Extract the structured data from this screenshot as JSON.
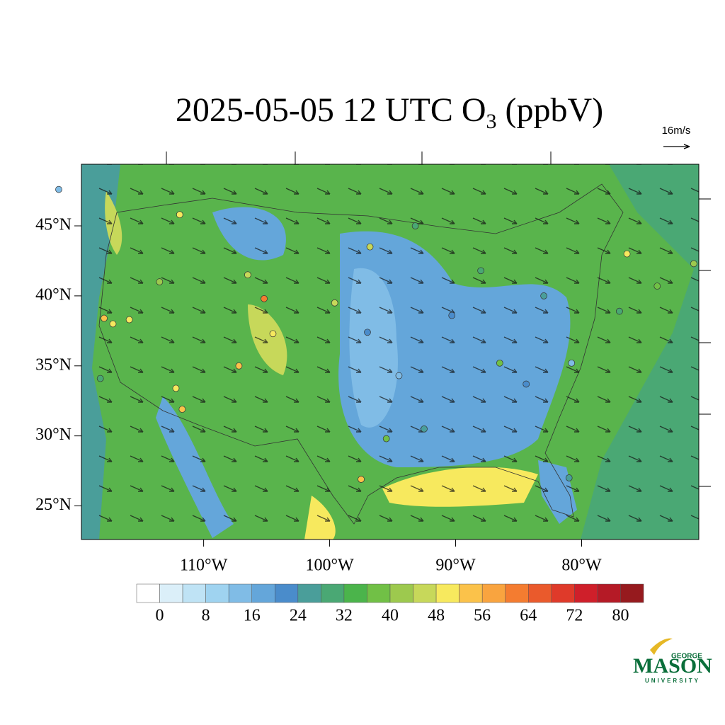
{
  "chart_data": {
    "type": "map",
    "title": "2025-05-05 12 UTC O",
    "title_subscript": "3",
    "title_tail": " (ppbV)",
    "reference_vector": "16m/s",
    "xlim": [
      -119.7,
      -70.7
    ],
    "ylim": [
      22.6,
      49.4
    ],
    "xticks": [
      {
        "value": -110,
        "label": "110°W"
      },
      {
        "value": -100,
        "label": "100°W"
      },
      {
        "value": -90,
        "label": "90°W"
      },
      {
        "value": -80,
        "label": "80°W"
      }
    ],
    "yticks": [
      {
        "value": 25,
        "label": "25°N"
      },
      {
        "value": 30,
        "label": "30°N"
      },
      {
        "value": 35,
        "label": "35°N"
      },
      {
        "value": 40,
        "label": "40°N"
      },
      {
        "value": 45,
        "label": "45°N"
      }
    ],
    "colorbar": {
      "range": [
        -4,
        84
      ],
      "colors": [
        "#ffffff",
        "#dbeff9",
        "#bfe3f5",
        "#9fd3f0",
        "#80bce6",
        "#64a6da",
        "#4a8ccb",
        "#4a9e9a",
        "#4aa874",
        "#4bb44b",
        "#71c046",
        "#9dc94e",
        "#c7d85a",
        "#f7e95e",
        "#fbc24a",
        "#f9a43f",
        "#f47c30",
        "#ea5a2c",
        "#df3a2a",
        "#cf1f2a",
        "#b51a26",
        "#961a1e"
      ],
      "ticks": [
        0,
        8,
        16,
        24,
        32,
        40,
        48,
        56,
        64,
        72,
        80
      ]
    },
    "stations": [
      {
        "lon": -117.9,
        "lat": 38.4,
        "value": 52
      },
      {
        "lon": -117.2,
        "lat": 38.0,
        "value": 50
      },
      {
        "lon": -115.9,
        "lat": 38.3,
        "value": 49
      },
      {
        "lon": -118.2,
        "lat": 34.1,
        "value": 28
      },
      {
        "lon": -112.2,
        "lat": 33.4,
        "value": 50
      },
      {
        "lon": -111.7,
        "lat": 31.9,
        "value": 52
      },
      {
        "lon": -105.2,
        "lat": 39.8,
        "value": 62
      },
      {
        "lon": -104.5,
        "lat": 37.3,
        "value": 50
      },
      {
        "lon": -107.2,
        "lat": 35.0,
        "value": 52
      },
      {
        "lon": -106.5,
        "lat": 41.5,
        "value": 46
      },
      {
        "lon": -111.9,
        "lat": 45.8,
        "value": 48
      },
      {
        "lon": -99.6,
        "lat": 39.5,
        "value": 46
      },
      {
        "lon": -97.0,
        "lat": 37.4,
        "value": 20
      },
      {
        "lon": -94.5,
        "lat": 34.3,
        "value": 14
      },
      {
        "lon": -95.5,
        "lat": 29.8,
        "value": 38
      },
      {
        "lon": -92.5,
        "lat": 30.5,
        "value": 24
      },
      {
        "lon": -90.3,
        "lat": 38.6,
        "value": 20
      },
      {
        "lon": -88.0,
        "lat": 41.8,
        "value": 30
      },
      {
        "lon": -86.5,
        "lat": 35.2,
        "value": 36
      },
      {
        "lon": -84.4,
        "lat": 33.7,
        "value": 22
      },
      {
        "lon": -81.0,
        "lat": 27.0,
        "value": 24
      },
      {
        "lon": -80.8,
        "lat": 35.2,
        "value": 14
      },
      {
        "lon": -77.0,
        "lat": 38.9,
        "value": 30
      },
      {
        "lon": -74.0,
        "lat": 40.7,
        "value": 36
      },
      {
        "lon": -76.4,
        "lat": 43.0,
        "value": 48
      },
      {
        "lon": -71.1,
        "lat": 42.3,
        "value": 40
      },
      {
        "lon": -96.8,
        "lat": 43.5,
        "value": 44
      },
      {
        "lon": -93.2,
        "lat": 45.0,
        "value": 30
      },
      {
        "lon": -83.0,
        "lat": 40.0,
        "value": 26
      },
      {
        "lon": -121.5,
        "lat": 47.6,
        "value": 12
      },
      {
        "lon": -113.5,
        "lat": 41.0,
        "value": 40
      },
      {
        "lon": -97.5,
        "lat": 26.9,
        "value": 54
      }
    ],
    "logo": {
      "top": "GEORGE",
      "main": "MASON",
      "bottom": "UNIVERSITY"
    }
  }
}
